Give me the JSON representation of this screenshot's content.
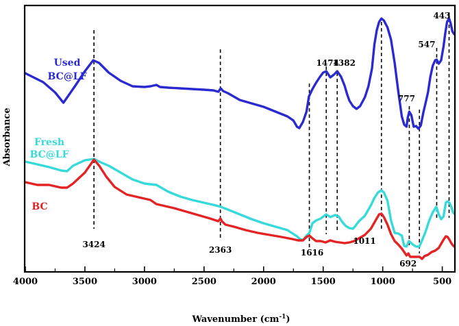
{
  "chart_data": {
    "type": "line",
    "title": "",
    "xlabel": "Wavenumber (cm",
    "xlabel_sup": "-1",
    "xlabel_close": ")",
    "ylabel": "Absorbance",
    "xlim": [
      4000,
      400
    ],
    "x_reversed": true,
    "xticks": [
      4000,
      3500,
      3000,
      2500,
      2000,
      1500,
      1000,
      500
    ],
    "series": [
      {
        "name": "Used BC@LF",
        "label_lines": [
          "Used",
          "BC@LF"
        ],
        "color": "#2a2ad0",
        "points": [
          [
            4000,
            107
          ],
          [
            3850,
            120
          ],
          [
            3750,
            135
          ],
          [
            3680,
            150
          ],
          [
            3640,
            140
          ],
          [
            3580,
            125
          ],
          [
            3500,
            104
          ],
          [
            3430,
            88
          ],
          [
            3380,
            92
          ],
          [
            3300,
            106
          ],
          [
            3200,
            118
          ],
          [
            3100,
            126
          ],
          [
            3000,
            127
          ],
          [
            2950,
            126
          ],
          [
            2900,
            124
          ],
          [
            2870,
            127
          ],
          [
            2800,
            128
          ],
          [
            2700,
            129
          ],
          [
            2600,
            130
          ],
          [
            2500,
            131
          ],
          [
            2420,
            132
          ],
          [
            2380,
            134
          ],
          [
            2360,
            129
          ],
          [
            2340,
            133
          ],
          [
            2300,
            136
          ],
          [
            2250,
            141
          ],
          [
            2200,
            146
          ],
          [
            2100,
            151
          ],
          [
            2000,
            156
          ],
          [
            1900,
            163
          ],
          [
            1800,
            170
          ],
          [
            1750,
            176
          ],
          [
            1720,
            185
          ],
          [
            1700,
            187
          ],
          [
            1670,
            178
          ],
          [
            1640,
            163
          ],
          [
            1620,
            141
          ],
          [
            1590,
            130
          ],
          [
            1560,
            121
          ],
          [
            1530,
            113
          ],
          [
            1500,
            106
          ],
          [
            1474,
            104
          ],
          [
            1440,
            113
          ],
          [
            1410,
            109
          ],
          [
            1382,
            104
          ],
          [
            1350,
            112
          ],
          [
            1320,
            125
          ],
          [
            1300,
            137
          ],
          [
            1280,
            147
          ],
          [
            1250,
            155
          ],
          [
            1220,
            159
          ],
          [
            1190,
            155
          ],
          [
            1150,
            142
          ],
          [
            1120,
            126
          ],
          [
            1090,
            100
          ],
          [
            1070,
            65
          ],
          [
            1050,
            44
          ],
          [
            1030,
            32
          ],
          [
            1011,
            27
          ],
          [
            990,
            30
          ],
          [
            960,
            40
          ],
          [
            930,
            58
          ],
          [
            900,
            92
          ],
          [
            870,
            133
          ],
          [
            840,
            170
          ],
          [
            820,
            182
          ],
          [
            800,
            185
          ],
          [
            790,
            172
          ],
          [
            777,
            163
          ],
          [
            760,
            168
          ],
          [
            740,
            185
          ],
          [
            720,
            184
          ],
          [
            700,
            188
          ],
          [
            680,
            183
          ],
          [
            660,
            165
          ],
          [
            640,
            150
          ],
          [
            620,
            135
          ],
          [
            600,
            112
          ],
          [
            580,
            96
          ],
          [
            560,
            88
          ],
          [
            547,
            87
          ],
          [
            530,
            93
          ],
          [
            510,
            88
          ],
          [
            490,
            68
          ],
          [
            475,
            48
          ],
          [
            460,
            32
          ],
          [
            443,
            27
          ],
          [
            430,
            34
          ],
          [
            415,
            46
          ],
          [
            400,
            50
          ]
        ]
      },
      {
        "name": "Fresh BC@LF",
        "label_lines": [
          "Fresh",
          "BC@LF"
        ],
        "color": "#36dada",
        "points": [
          [
            4000,
            236
          ],
          [
            3900,
            240
          ],
          [
            3800,
            244
          ],
          [
            3700,
            249
          ],
          [
            3650,
            250
          ],
          [
            3600,
            242
          ],
          [
            3500,
            234
          ],
          [
            3424,
            232
          ],
          [
            3380,
            236
          ],
          [
            3300,
            242
          ],
          [
            3200,
            252
          ],
          [
            3100,
            262
          ],
          [
            3000,
            268
          ],
          [
            2900,
            270
          ],
          [
            2800,
            280
          ],
          [
            2700,
            287
          ],
          [
            2600,
            292
          ],
          [
            2500,
            296
          ],
          [
            2400,
            300
          ],
          [
            2360,
            302
          ],
          [
            2300,
            306
          ],
          [
            2200,
            313
          ],
          [
            2100,
            320
          ],
          [
            2000,
            326
          ],
          [
            1900,
            331
          ],
          [
            1800,
            336
          ],
          [
            1720,
            345
          ],
          [
            1690,
            350
          ],
          [
            1665,
            350
          ],
          [
            1640,
            344
          ],
          [
            1616,
            340
          ],
          [
            1590,
            326
          ],
          [
            1560,
            322
          ],
          [
            1520,
            319
          ],
          [
            1490,
            315
          ],
          [
            1474,
            313
          ],
          [
            1440,
            317
          ],
          [
            1400,
            314
          ],
          [
            1370,
            316
          ],
          [
            1340,
            324
          ],
          [
            1310,
            330
          ],
          [
            1280,
            333
          ],
          [
            1250,
            334
          ],
          [
            1230,
            330
          ],
          [
            1200,
            323
          ],
          [
            1150,
            315
          ],
          [
            1100,
            300
          ],
          [
            1070,
            289
          ],
          [
            1040,
            281
          ],
          [
            1011,
            278
          ],
          [
            990,
            281
          ],
          [
            960,
            293
          ],
          [
            930,
            322
          ],
          [
            900,
            340
          ],
          [
            870,
            341
          ],
          [
            840,
            344
          ],
          [
            820,
            359
          ],
          [
            800,
            360
          ],
          [
            780,
            352
          ],
          [
            760,
            355
          ],
          [
            740,
            358
          ],
          [
            720,
            360
          ],
          [
            692,
            360
          ],
          [
            670,
            351
          ],
          [
            640,
            338
          ],
          [
            610,
            322
          ],
          [
            580,
            310
          ],
          [
            550,
            302
          ],
          [
            530,
            313
          ],
          [
            510,
            320
          ],
          [
            490,
            316
          ],
          [
            470,
            296
          ],
          [
            455,
            294
          ],
          [
            440,
            296
          ],
          [
            425,
            302
          ],
          [
            410,
            310
          ],
          [
            400,
            312
          ]
        ]
      },
      {
        "name": "BC",
        "label_lines": [
          "BC"
        ],
        "color": "#e42424",
        "points": [
          [
            4000,
            266
          ],
          [
            3900,
            270
          ],
          [
            3800,
            270
          ],
          [
            3700,
            274
          ],
          [
            3650,
            274
          ],
          [
            3600,
            268
          ],
          [
            3500,
            252
          ],
          [
            3424,
            233
          ],
          [
            3380,
            242
          ],
          [
            3320,
            258
          ],
          [
            3250,
            273
          ],
          [
            3150,
            284
          ],
          [
            3050,
            288
          ],
          [
            2950,
            292
          ],
          [
            2900,
            298
          ],
          [
            2850,
            300
          ],
          [
            2750,
            304
          ],
          [
            2650,
            309
          ],
          [
            2550,
            314
          ],
          [
            2450,
            319
          ],
          [
            2380,
            323
          ],
          [
            2363,
            319
          ],
          [
            2350,
            323
          ],
          [
            2320,
            328
          ],
          [
            2250,
            331
          ],
          [
            2150,
            336
          ],
          [
            2050,
            340
          ],
          [
            1950,
            343
          ],
          [
            1850,
            346
          ],
          [
            1760,
            349
          ],
          [
            1710,
            351
          ],
          [
            1670,
            351
          ],
          [
            1640,
            346
          ],
          [
            1616,
            344
          ],
          [
            1590,
            348
          ],
          [
            1560,
            352
          ],
          [
            1520,
            352
          ],
          [
            1480,
            354
          ],
          [
            1440,
            351
          ],
          [
            1400,
            353
          ],
          [
            1360,
            354
          ],
          [
            1320,
            355
          ],
          [
            1280,
            354
          ],
          [
            1240,
            352
          ],
          [
            1200,
            348
          ],
          [
            1150,
            343
          ],
          [
            1100,
            334
          ],
          [
            1060,
            322
          ],
          [
            1030,
            313
          ],
          [
            1011,
            312
          ],
          [
            990,
            317
          ],
          [
            960,
            328
          ],
          [
            930,
            342
          ],
          [
            900,
            352
          ],
          [
            870,
            357
          ],
          [
            840,
            363
          ],
          [
            820,
            368
          ],
          [
            800,
            373
          ],
          [
            785,
            370
          ],
          [
            770,
            375
          ],
          [
            750,
            375
          ],
          [
            720,
            375
          ],
          [
            692,
            375
          ],
          [
            670,
            378
          ],
          [
            650,
            374
          ],
          [
            620,
            372
          ],
          [
            590,
            368
          ],
          [
            560,
            366
          ],
          [
            530,
            362
          ],
          [
            510,
            356
          ],
          [
            490,
            350
          ],
          [
            470,
            345
          ],
          [
            455,
            346
          ],
          [
            440,
            350
          ],
          [
            425,
            355
          ],
          [
            412,
            358
          ],
          [
            400,
            360
          ]
        ]
      }
    ],
    "peak_markers": [
      {
        "x": 3424,
        "label": "3424"
      },
      {
        "x": 2363,
        "label": "2363"
      },
      {
        "x": 1616,
        "label": "1616"
      },
      {
        "x": 1474,
        "label": "1474"
      },
      {
        "x": 1382,
        "label": "1382"
      },
      {
        "x": 1011,
        "label": "1011"
      },
      {
        "x": 777,
        "label": "777"
      },
      {
        "x": 692,
        "label": "692"
      },
      {
        "x": 547,
        "label": "547"
      },
      {
        "x": 443,
        "label": "443"
      }
    ]
  }
}
